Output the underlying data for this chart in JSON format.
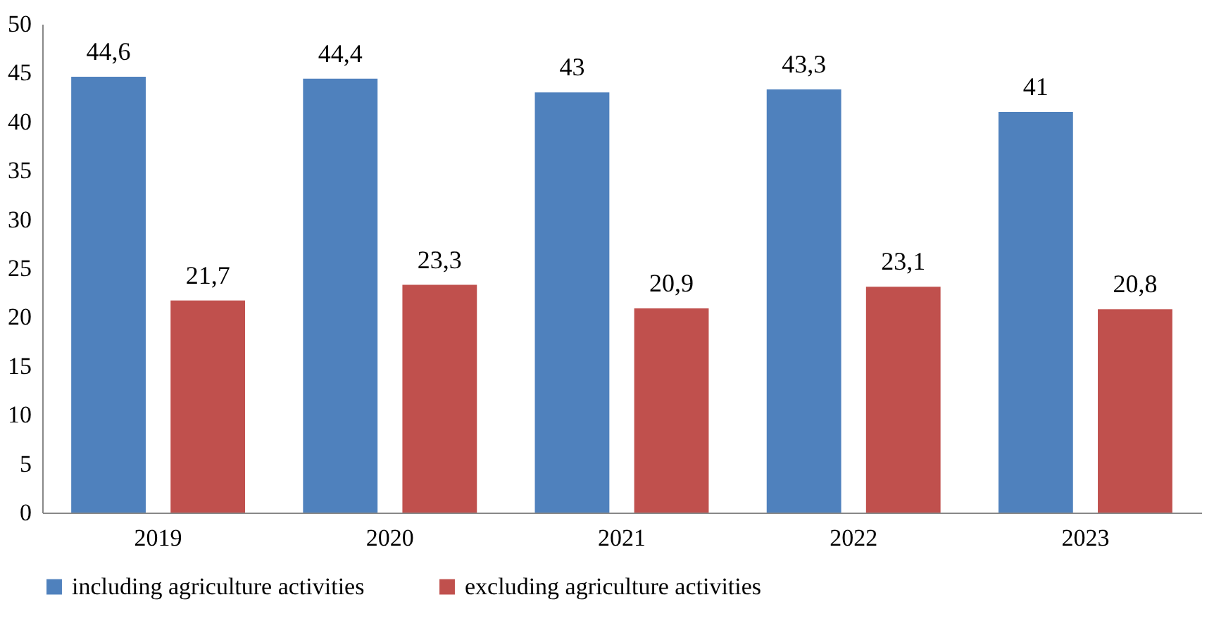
{
  "chart_data": {
    "type": "bar",
    "categories": [
      "2019",
      "2020",
      "2021",
      "2022",
      "2023"
    ],
    "series": [
      {
        "name": "including agriculture activities",
        "color": "#4f81bd",
        "values": [
          44.6,
          44.4,
          43,
          43.3,
          41
        ],
        "value_labels": [
          "44,6",
          "44,4",
          "43",
          "43,3",
          "41"
        ]
      },
      {
        "name": "excluding agriculture activities",
        "color": "#c0504d",
        "values": [
          21.7,
          23.3,
          20.9,
          23.1,
          20.8
        ],
        "value_labels": [
          "21,7",
          "23,3",
          "20,9",
          "23,1",
          "20,8"
        ]
      }
    ],
    "ylim": [
      0,
      50
    ],
    "yticks": [
      0,
      5,
      10,
      15,
      20,
      25,
      30,
      35,
      40,
      45,
      50
    ],
    "grid": false,
    "legend": "bottom"
  }
}
